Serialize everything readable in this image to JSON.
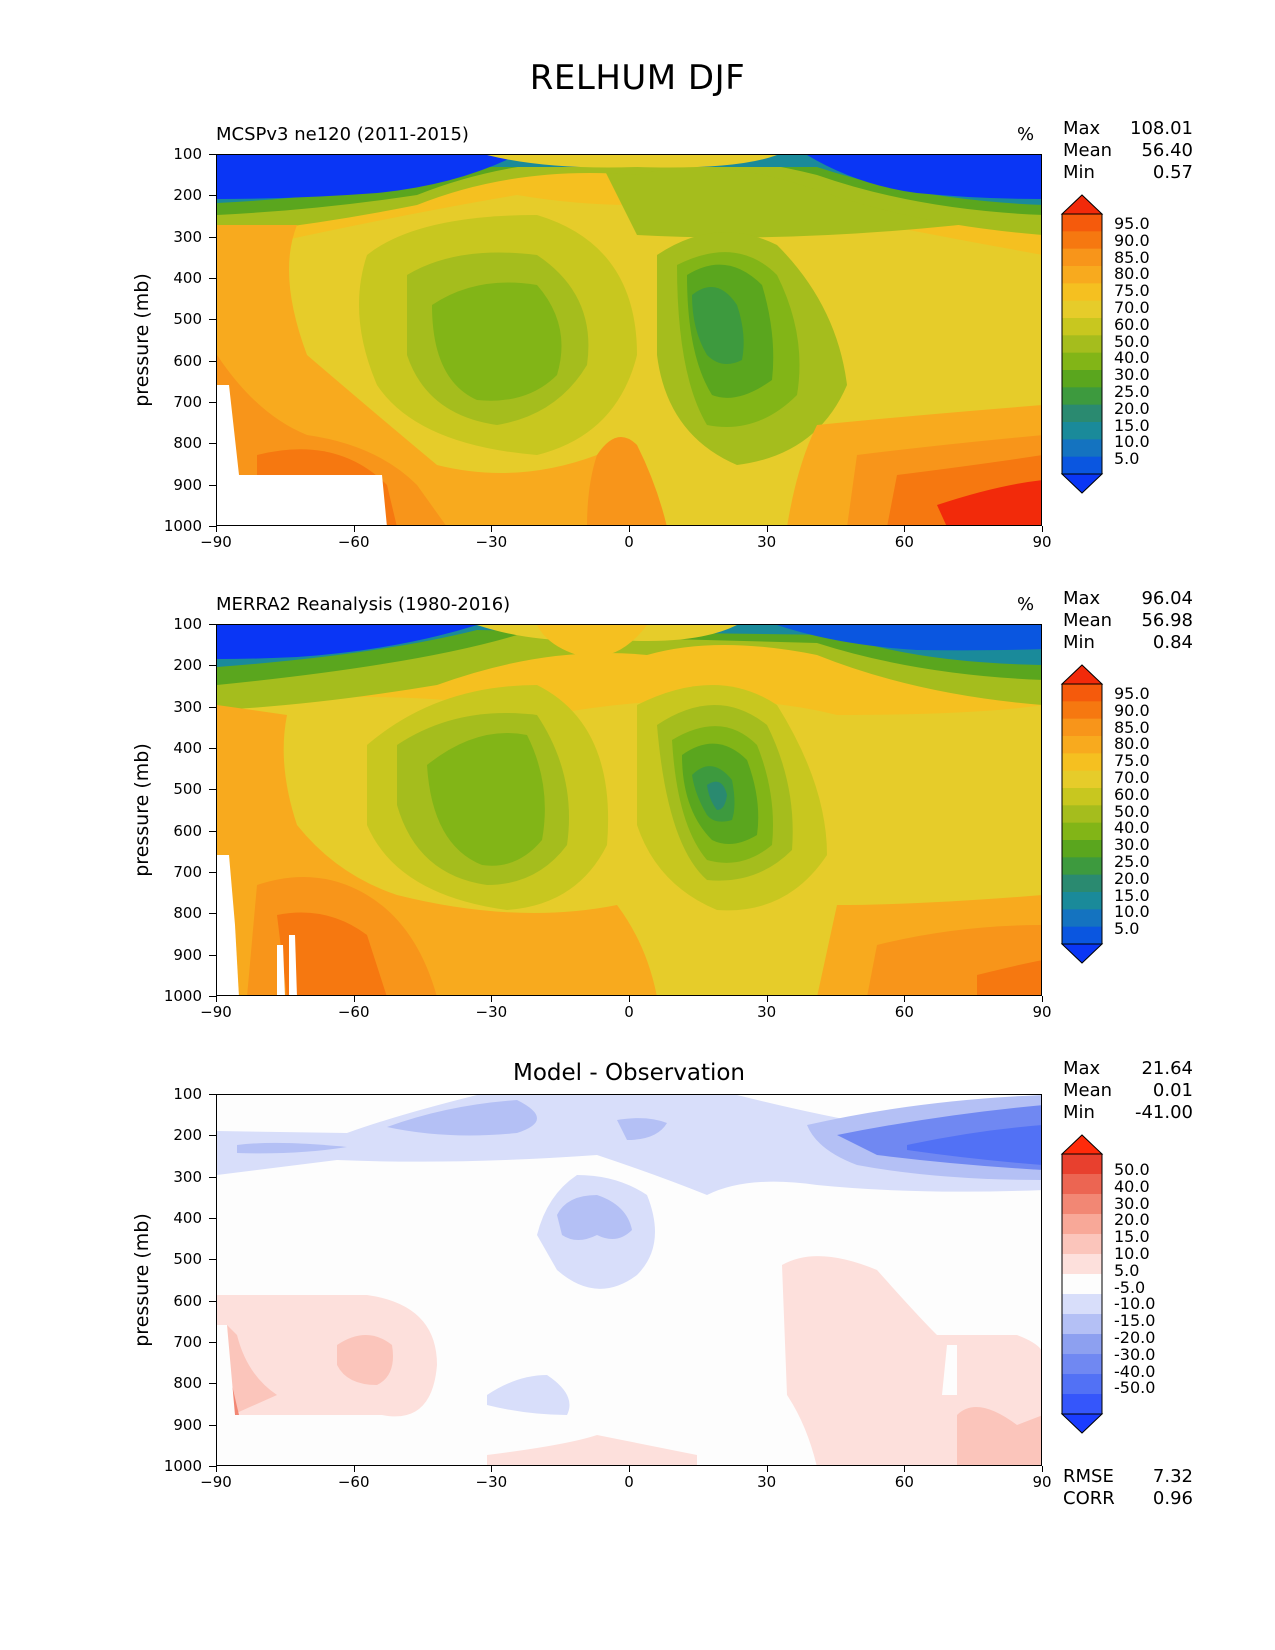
{
  "figure": {
    "title": "RELHUM DJF"
  },
  "axes": {
    "ylabel": "pressure (mb)",
    "yticks": [
      "100",
      "200",
      "300",
      "400",
      "500",
      "600",
      "700",
      "800",
      "900",
      "1000"
    ],
    "xticks": [
      "−90",
      "−60",
      "−30",
      "0",
      "30",
      "60",
      "90"
    ]
  },
  "colors": {
    "rh_levels": [
      "#0a36f5",
      "#0a56e0",
      "#1473c0",
      "#1a8a9a",
      "#2a8a70",
      "#3d9a3e",
      "#5aa61e",
      "#82b517",
      "#a5bd1d",
      "#c8c71f",
      "#e6cc2a",
      "#f5c020",
      "#f8aa1e",
      "#f8951a",
      "#f67810",
      "#f55a0c",
      "#f22a0a"
    ],
    "diff_levels": [
      "#1a3cff",
      "#3556fb",
      "#5271f5",
      "#7088f2",
      "#8da0f0",
      "#b4c0f5",
      "#d8defa",
      "#fdfdfd",
      "#fde0dc",
      "#fbc5bb",
      "#f8a898",
      "#f28774",
      "#ec6552",
      "#e8402e",
      "#ff2a0a"
    ]
  },
  "panels": [
    {
      "left_title": "MCSPv3 ne120 (2011-2015)",
      "units": "%",
      "stats": [
        {
          "label": "Max",
          "value": "108.01"
        },
        {
          "label": "Mean",
          "value": "56.40"
        },
        {
          "label": "Min",
          "value": "0.57"
        }
      ],
      "colorbar_labels": [
        "95.0",
        "90.0",
        "85.0",
        "80.0",
        "75.0",
        "70.0",
        "60.0",
        "50.0",
        "40.0",
        "30.0",
        "25.0",
        "20.0",
        "15.0",
        "10.0",
        "5.0"
      ]
    },
    {
      "left_title": "MERRA2 Reanalysis (1980-2016)",
      "units": "%",
      "stats": [
        {
          "label": "Max",
          "value": "96.04"
        },
        {
          "label": "Mean",
          "value": "56.98"
        },
        {
          "label": "Min",
          "value": "0.84"
        }
      ],
      "colorbar_labels": [
        "95.0",
        "90.0",
        "85.0",
        "80.0",
        "75.0",
        "70.0",
        "60.0",
        "50.0",
        "40.0",
        "30.0",
        "25.0",
        "20.0",
        "15.0",
        "10.0",
        "5.0"
      ]
    },
    {
      "center_title": "Model - Observation",
      "stats": [
        {
          "label": "Max",
          "value": "21.64"
        },
        {
          "label": "Mean",
          "value": "0.01"
        },
        {
          "label": "Min",
          "value": "-41.00"
        }
      ],
      "colorbar_labels": [
        "50.0",
        "40.0",
        "30.0",
        "20.0",
        "15.0",
        "10.0",
        "5.0",
        "-5.0",
        "-10.0",
        "-15.0",
        "-20.0",
        "-30.0",
        "-40.0",
        "-50.0"
      ],
      "bottom_stats": [
        {
          "label": "RMSE",
          "value": "7.32"
        },
        {
          "label": "CORR",
          "value": "0.96"
        }
      ]
    }
  ],
  "chart_data": [
    {
      "type": "heatmap",
      "title": "MCSPv3 ne120 (2011-2015)",
      "units": "%",
      "xlabel": "",
      "ylabel": "pressure (mb)",
      "xlim": [
        -90,
        90
      ],
      "ylim": [
        1000,
        100
      ],
      "levels": [
        5,
        10,
        15,
        20,
        25,
        30,
        40,
        50,
        60,
        70,
        75,
        80,
        85,
        90,
        95
      ],
      "stats": {
        "max": 108.01,
        "mean": 56.4,
        "min": 0.57
      },
      "features": [
        {
          "desc": "dry upper troposphere",
          "pressure": 150,
          "lat_range": [
            -90,
            -45
          ],
          "value": 5
        },
        {
          "desc": "dry upper troposphere",
          "pressure": 150,
          "lat_range": [
            45,
            90
          ],
          "value": 5
        },
        {
          "desc": "subtropical dry minimum",
          "pressure": 550,
          "lat": -25,
          "value": 30
        },
        {
          "desc": "subtropical dry minimum",
          "pressure": 500,
          "lat": 18,
          "value": 20
        },
        {
          "desc": "equatorial moist column",
          "pressure": 600,
          "lat": 0,
          "value": 70
        },
        {
          "desc": "polar boundary layer moist",
          "pressure": 950,
          "lat": 80,
          "value": 95
        }
      ]
    },
    {
      "type": "heatmap",
      "title": "MERRA2 Reanalysis (1980-2016)",
      "units": "%",
      "xlabel": "",
      "ylabel": "pressure (mb)",
      "xlim": [
        -90,
        90
      ],
      "ylim": [
        1000,
        100
      ],
      "levels": [
        5,
        10,
        15,
        20,
        25,
        30,
        40,
        50,
        60,
        70,
        75,
        80,
        85,
        90,
        95
      ],
      "stats": {
        "max": 96.04,
        "mean": 56.98,
        "min": 0.84
      },
      "features": [
        {
          "desc": "dry upper troposphere",
          "pressure": 120,
          "lat_range": [
            -90,
            -60
          ],
          "value": 5
        },
        {
          "desc": "dry upper troposphere",
          "pressure": 130,
          "lat_range": [
            40,
            70
          ],
          "value": 5
        },
        {
          "desc": "subtropical dry minimum",
          "pressure": 550,
          "lat": -30,
          "value": 30
        },
        {
          "desc": "subtropical dry minimum",
          "pressure": 550,
          "lat": 20,
          "value": 20
        },
        {
          "desc": "equatorial moist column",
          "pressure": 600,
          "lat": 0,
          "value": 70
        }
      ]
    },
    {
      "type": "heatmap",
      "title": "Model - Observation",
      "xlabel": "",
      "ylabel": "pressure (mb)",
      "xlim": [
        -90,
        90
      ],
      "ylim": [
        1000,
        100
      ],
      "levels": [
        -50,
        -40,
        -30,
        -20,
        -15,
        -10,
        -5,
        5,
        10,
        15,
        20,
        30,
        40,
        50
      ],
      "stats": {
        "max": 21.64,
        "mean": 0.01,
        "min": -41.0,
        "rmse": 7.32,
        "corr": 0.96
      },
      "features": [
        {
          "desc": "negative bias upper troposphere",
          "pressure": 220,
          "lat_range": [
            40,
            90
          ],
          "value": -30
        },
        {
          "desc": "negative bias equatorial mid troposphere",
          "pressure": 350,
          "lat": -5,
          "value": -15
        },
        {
          "desc": "positive bias lower troposphere",
          "pressure": 750,
          "lat": -60,
          "value": 15
        },
        {
          "desc": "positive bias lower troposphere",
          "pressure": 750,
          "lat_range": [
            35,
            90
          ],
          "value": 10
        }
      ]
    }
  ]
}
